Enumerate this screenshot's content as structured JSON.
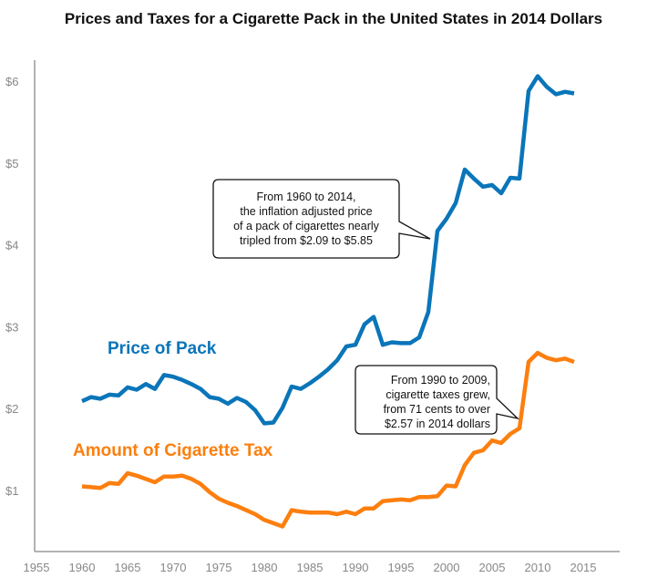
{
  "chart_data": {
    "type": "line",
    "title": "Prices and Taxes for a Cigarette Pack in the United States in 2014 Dollars",
    "xlabel": "",
    "ylabel": "",
    "xlim": [
      1955,
      2019
    ],
    "ylim": [
      0.26,
      6.3
    ],
    "x_ticks": [
      "1955",
      "1960",
      "1965",
      "1970",
      "1975",
      "1980",
      "1985",
      "1990",
      "1995",
      "2000",
      "2005",
      "2010",
      "2015"
    ],
    "y_ticks": [
      "$1",
      "$2",
      "$3",
      "$4",
      "$5",
      "$6"
    ],
    "grid": false,
    "colors": {
      "price": "#0a75b9",
      "tax": "#fc7f0f"
    },
    "x": [
      1960,
      1961,
      1962,
      1963,
      1964,
      1965,
      1966,
      1967,
      1968,
      1969,
      1970,
      1971,
      1972,
      1973,
      1974,
      1975,
      1976,
      1977,
      1978,
      1979,
      1980,
      1981,
      1982,
      1983,
      1984,
      1985,
      1986,
      1987,
      1988,
      1989,
      1990,
      1991,
      1992,
      1993,
      1994,
      1995,
      1996,
      1997,
      1998,
      1999,
      2000,
      2001,
      2002,
      2003,
      2004,
      2005,
      2006,
      2007,
      2008,
      2009,
      2010,
      2011,
      2012,
      2013,
      2014
    ],
    "series": [
      {
        "name": "Price of Pack",
        "values": [
          2.09,
          2.14,
          2.12,
          2.17,
          2.16,
          2.26,
          2.23,
          2.3,
          2.24,
          2.41,
          2.39,
          2.35,
          2.3,
          2.24,
          2.14,
          2.12,
          2.06,
          2.13,
          2.08,
          1.98,
          1.82,
          1.83,
          2.01,
          2.27,
          2.24,
          2.31,
          2.39,
          2.48,
          2.59,
          2.76,
          2.78,
          3.03,
          3.12,
          2.78,
          2.81,
          2.8,
          2.8,
          2.87,
          3.18,
          4.17,
          4.32,
          4.51,
          4.92,
          4.81,
          4.71,
          4.73,
          4.63,
          4.82,
          4.81,
          5.88,
          6.06,
          5.93,
          5.84,
          5.87,
          5.85
        ]
      },
      {
        "name": "Amount of Cigarette Tax",
        "values": [
          1.05,
          1.04,
          1.03,
          1.09,
          1.08,
          1.21,
          1.18,
          1.14,
          1.1,
          1.17,
          1.17,
          1.18,
          1.14,
          1.08,
          0.98,
          0.9,
          0.85,
          0.81,
          0.76,
          0.71,
          0.64,
          0.6,
          0.56,
          0.76,
          0.74,
          0.73,
          0.73,
          0.73,
          0.71,
          0.74,
          0.71,
          0.78,
          0.78,
          0.87,
          0.88,
          0.89,
          0.88,
          0.92,
          0.92,
          0.93,
          1.06,
          1.05,
          1.31,
          1.46,
          1.49,
          1.61,
          1.58,
          1.69,
          1.76,
          2.57,
          2.68,
          2.62,
          2.59,
          2.61,
          2.57
        ]
      }
    ],
    "annotations": [
      {
        "lines": [
          "From 1960 to 2014,",
          "the inflation adjusted price",
          "of a pack of cigarettes nearly",
          "tripled from $2.09 to $5.85"
        ]
      },
      {
        "lines": [
          "From 1990 to 2009,",
          "cigarette taxes grew,",
          "from 71 cents to over",
          "$2.57 in 2014 dollars"
        ]
      }
    ]
  }
}
